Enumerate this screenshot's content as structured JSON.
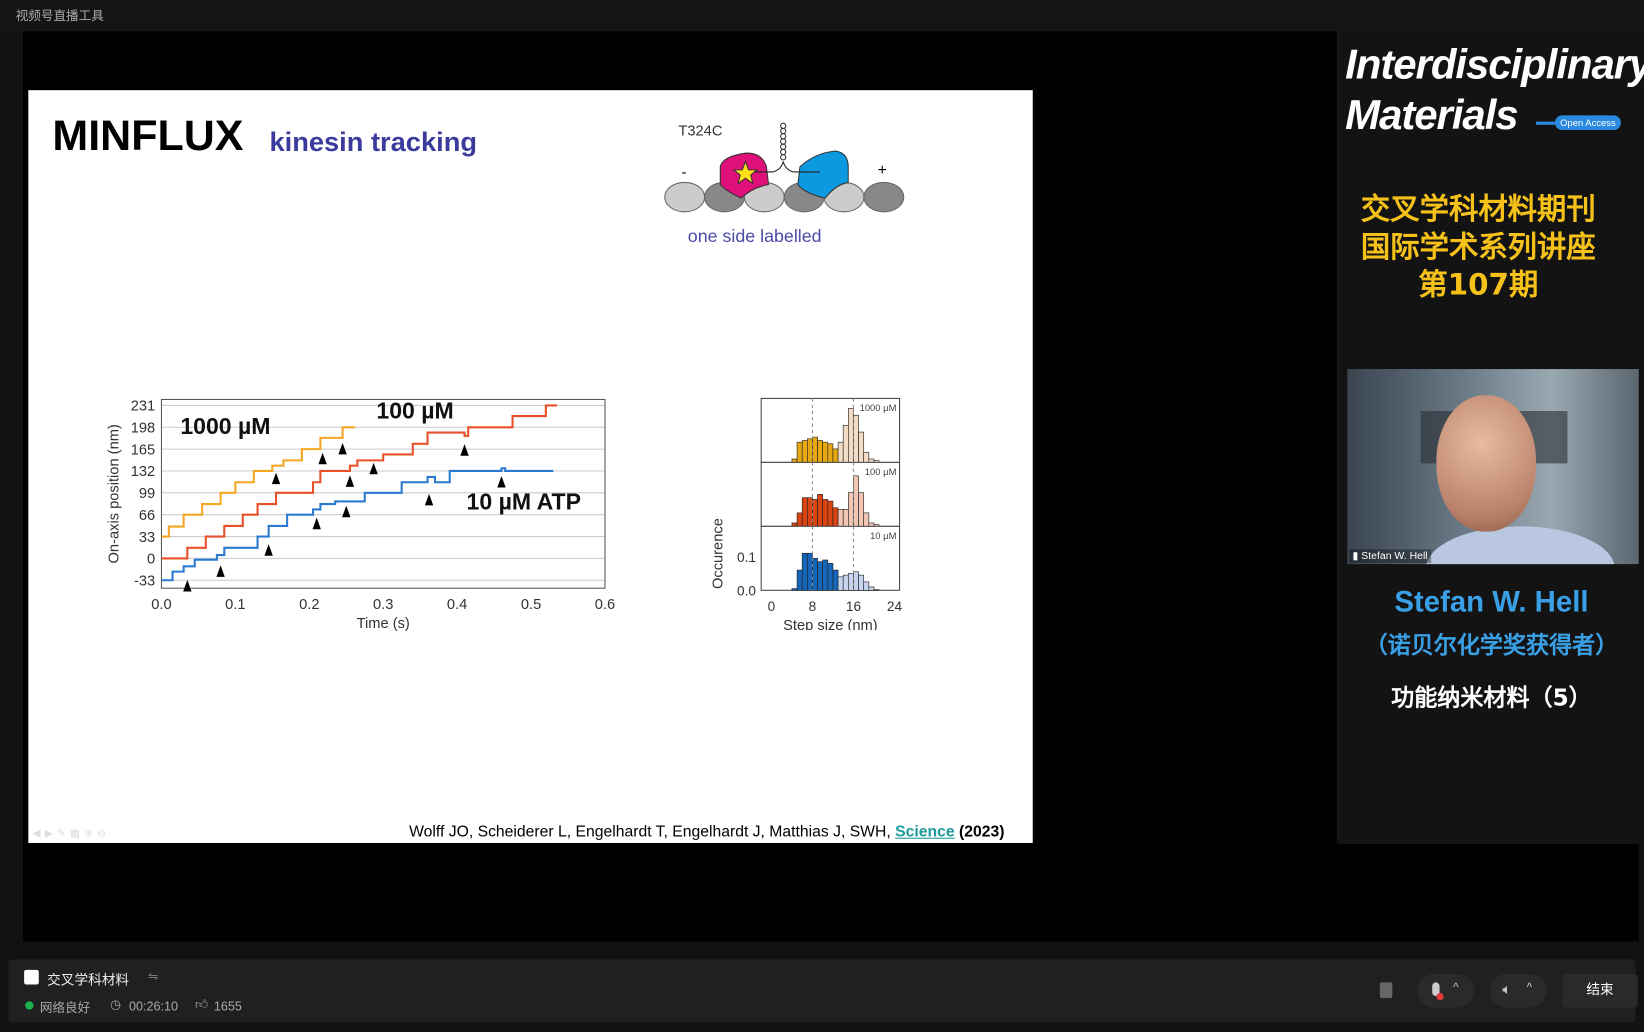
{
  "app": {
    "title": "视频号直播工具"
  },
  "slide": {
    "title": "MINFLUX",
    "subtitle": "kinesin tracking",
    "diagram": {
      "mutation": "T324C",
      "minus": "-",
      "plus": "+",
      "caption": "one side labelled"
    },
    "citation": {
      "authors": "Wolff JO, Scheiderer L, Engelhardt T, Engelhardt J, Matthias J, SWH,",
      "journal": "Science",
      "year": "(2023)"
    },
    "colors": {
      "subtitle": "#3b3b9e",
      "journal": "#1a9a9a",
      "caption": "#4a4aa8"
    }
  },
  "chart_data": [
    {
      "type": "line",
      "xlabel": "Time (s)",
      "ylabel": "On-axis position (nm)",
      "xlim": [
        0,
        0.6
      ],
      "ylim": [
        -45,
        240
      ],
      "xticks": [
        "0.0",
        "0.1",
        "0.2",
        "0.3",
        "0.4",
        "0.5",
        "0.6"
      ],
      "yticks": [
        "-33",
        "0",
        "33",
        "66",
        "99",
        "132",
        "165",
        "198",
        "231"
      ],
      "grid": true,
      "labels": [
        "1000 µM",
        "100 µM",
        "10 µM ATP"
      ],
      "series": [
        {
          "name": "1000 µM",
          "color": "#f5a623",
          "x": [
            0,
            0.01,
            0.03,
            0.055,
            0.08,
            0.1,
            0.125,
            0.15,
            0.165,
            0.19,
            0.215,
            0.245,
            0.262
          ],
          "y": [
            33,
            48,
            66,
            82,
            99,
            115,
            132,
            140,
            148,
            165,
            182,
            198,
            198
          ]
        },
        {
          "name": "100 µM",
          "color": "#e8502a",
          "x": [
            0,
            0.035,
            0.06,
            0.085,
            0.11,
            0.13,
            0.155,
            0.205,
            0.215,
            0.255,
            0.265,
            0.3,
            0.34,
            0.36,
            0.41,
            0.415,
            0.475,
            0.52,
            0.535
          ],
          "y": [
            0,
            16,
            33,
            49,
            66,
            82,
            99,
            115,
            132,
            140,
            148,
            157,
            173,
            190,
            185,
            198,
            215,
            231,
            231
          ]
        },
        {
          "name": "10 µM ATP",
          "color": "#2a7bd0",
          "x": [
            0,
            0.015,
            0.03,
            0.045,
            0.075,
            0.085,
            0.13,
            0.145,
            0.17,
            0.205,
            0.215,
            0.235,
            0.275,
            0.325,
            0.36,
            0.37,
            0.39,
            0.46,
            0.465,
            0.53
          ],
          "y": [
            -33,
            -20,
            -12,
            -2,
            5,
            16,
            33,
            49,
            66,
            74,
            82,
            86,
            99,
            115,
            123,
            115,
            132,
            136,
            132,
            132
          ]
        }
      ],
      "markers": {
        "x": [
          0.035,
          0.08,
          0.145,
          0.21,
          0.25,
          0.155,
          0.218,
          0.245,
          0.255,
          0.287,
          0.362,
          0.41,
          0.46
        ],
        "y": [
          -42,
          -20,
          12,
          52,
          70,
          120,
          150,
          165,
          116,
          135,
          88,
          163,
          115
        ]
      }
    },
    {
      "type": "bar",
      "xlabel": "Step size (nm)",
      "ylabel": "Occurence",
      "xlim": [
        -2,
        25
      ],
      "ylim": [
        0,
        0.19
      ],
      "xticks": [
        "0",
        "8",
        "16",
        "24"
      ],
      "yticks": [
        "0.0",
        "0.1"
      ],
      "reference_lines": [
        8,
        16
      ],
      "bin_start": 4,
      "bin_width": 1,
      "split_at": 13,
      "panels": [
        {
          "name": "1000 µM",
          "dark": "#e8a812",
          "light": "#f3dcc5",
          "values": [
            0.01,
            0.06,
            0.065,
            0.07,
            0.075,
            0.065,
            0.06,
            0.055,
            0.04,
            0.06,
            0.11,
            0.16,
            0.14,
            0.09,
            0.03,
            0.01,
            0.005
          ]
        },
        {
          "name": "100 µM",
          "dark": "#d94412",
          "light": "#f2c6b2",
          "values": [
            0.01,
            0.04,
            0.085,
            0.085,
            0.08,
            0.095,
            0.08,
            0.075,
            0.055,
            0.05,
            0.05,
            0.1,
            0.15,
            0.1,
            0.04,
            0.01,
            0.005
          ]
        },
        {
          "name": "10 µM",
          "dark": "#1565b8",
          "light": "#c8d4ee",
          "values": [
            0.005,
            0.06,
            0.11,
            0.11,
            0.095,
            0.085,
            0.09,
            0.08,
            0.06,
            0.04,
            0.045,
            0.05,
            0.055,
            0.045,
            0.025,
            0.01,
            0.002
          ]
        }
      ]
    }
  ],
  "panel": {
    "logo_line1": "Interdisciplinary",
    "logo_line2": "Materials",
    "logo_badge": "Open Access",
    "series_title_1": "交叉学科材料期刊",
    "series_title_2": "国际学术系列讲座",
    "series_title_3": "第107期",
    "speaker_name": "Stefan W. Hell",
    "speaker_note": "（诺贝尔化学奖获得者）",
    "topic": "功能纳米材料（5）",
    "video_label": "Stefan W. Hell",
    "colors": {
      "title": "#f6c21a",
      "speaker": "#3aa0e6"
    }
  },
  "bottom": {
    "channel": "交叉学科材料",
    "network": "网络良好",
    "duration": "00:26:10",
    "likes": "1655",
    "end_label": "结束",
    "network_color": "#19b34a"
  }
}
